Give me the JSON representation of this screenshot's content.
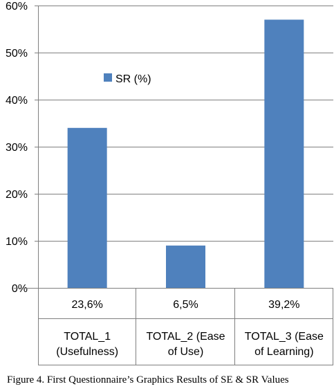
{
  "chart_data": {
    "type": "bar",
    "categories": [
      "TOTAL_1 (Usefulness)",
      "TOTAL_2 (Ease of Use)",
      "TOTAL_3 (Ease of Learning)"
    ],
    "category_lines": [
      [
        "TOTAL_1",
        "(Usefulness)"
      ],
      [
        "TOTAL_2 (Ease",
        "of Use)"
      ],
      [
        "TOTAL_3 (Ease",
        "of Learning)"
      ]
    ],
    "series": [
      {
        "name": "SR (%)",
        "values": [
          34,
          9,
          57
        ]
      }
    ],
    "table_row": [
      "23,6%",
      "6,5%",
      "39,2%"
    ],
    "yticks": [
      "0%",
      "10%",
      "20%",
      "30%",
      "40%",
      "50%",
      "60%"
    ],
    "ylim": [
      0,
      60
    ],
    "grid": true,
    "legend_position": "upper-left-inside",
    "title": "",
    "xlabel": "",
    "ylabel": ""
  },
  "colors": {
    "bar": "#4f81bd",
    "grid": "#7f7f7f",
    "axis": "#7f7f7f"
  },
  "caption": "Figure 4. First Questionnaire’s Graphics Results of SE & SR Values"
}
